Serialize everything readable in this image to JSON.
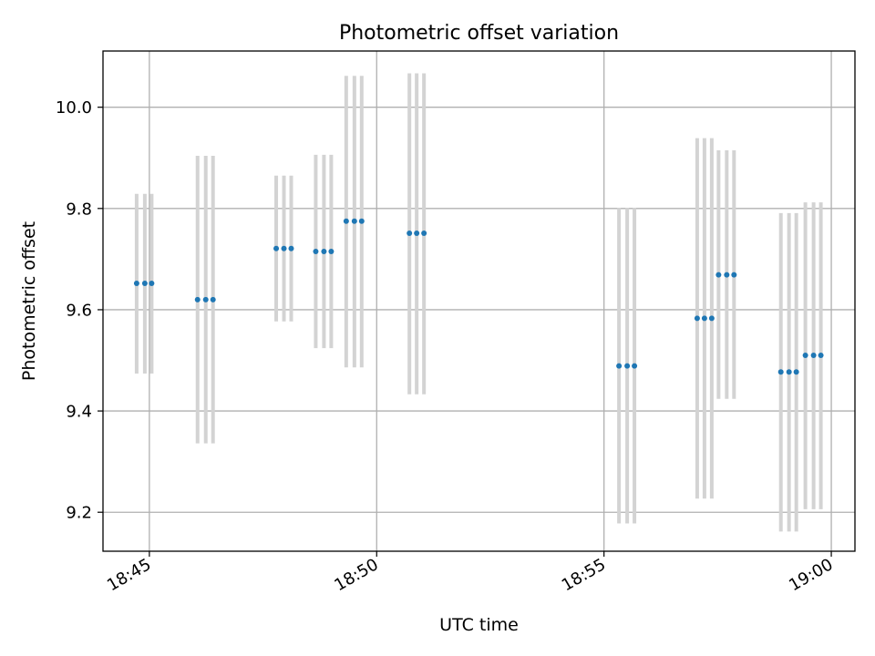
{
  "chart_data": {
    "type": "scatter",
    "title": "Photometric offset variation",
    "xlabel": "UTC time",
    "ylabel": "Photometric offset",
    "x_unit": "minutes after 18:00 UTC",
    "xlim": [
      43.98,
      60.52
    ],
    "ylim": [
      9.123,
      10.111
    ],
    "grid": true,
    "x_ticks": [
      {
        "value": 45,
        "label": "18:45"
      },
      {
        "value": 50,
        "label": "18:50"
      },
      {
        "value": 55,
        "label": "18:55"
      },
      {
        "value": 60,
        "label": "19:00"
      }
    ],
    "y_ticks": [
      {
        "value": 9.2,
        "label": "9.2"
      },
      {
        "value": 9.4,
        "label": "9.4"
      },
      {
        "value": 9.6,
        "label": "9.6"
      },
      {
        "value": 9.8,
        "label": "9.8"
      },
      {
        "value": 10.0,
        "label": "10.0"
      }
    ],
    "marker_color": "#1f77b4",
    "errorbar_color": "#d3d3d3",
    "points": [
      {
        "x": 44.72,
        "y": 9.652,
        "lower": 9.474,
        "upper": 9.829
      },
      {
        "x": 44.9,
        "y": 9.652,
        "lower": 9.474,
        "upper": 9.829
      },
      {
        "x": 45.05,
        "y": 9.652,
        "lower": 9.474,
        "upper": 9.829
      },
      {
        "x": 46.06,
        "y": 9.62,
        "lower": 9.336,
        "upper": 9.904
      },
      {
        "x": 46.24,
        "y": 9.62,
        "lower": 9.336,
        "upper": 9.904
      },
      {
        "x": 46.4,
        "y": 9.62,
        "lower": 9.336,
        "upper": 9.904
      },
      {
        "x": 47.79,
        "y": 9.721,
        "lower": 9.577,
        "upper": 9.865
      },
      {
        "x": 47.96,
        "y": 9.721,
        "lower": 9.577,
        "upper": 9.865
      },
      {
        "x": 48.12,
        "y": 9.721,
        "lower": 9.577,
        "upper": 9.865
      },
      {
        "x": 48.66,
        "y": 9.715,
        "lower": 9.524,
        "upper": 9.906
      },
      {
        "x": 48.84,
        "y": 9.715,
        "lower": 9.524,
        "upper": 9.906
      },
      {
        "x": 49.0,
        "y": 9.715,
        "lower": 9.524,
        "upper": 9.906
      },
      {
        "x": 49.33,
        "y": 9.775,
        "lower": 9.486,
        "upper": 10.062
      },
      {
        "x": 49.51,
        "y": 9.775,
        "lower": 9.486,
        "upper": 10.062
      },
      {
        "x": 49.67,
        "y": 9.775,
        "lower": 9.486,
        "upper": 10.062
      },
      {
        "x": 50.72,
        "y": 9.751,
        "lower": 9.433,
        "upper": 10.067
      },
      {
        "x": 50.88,
        "y": 9.751,
        "lower": 9.433,
        "upper": 10.067
      },
      {
        "x": 51.04,
        "y": 9.751,
        "lower": 9.433,
        "upper": 10.067
      },
      {
        "x": 55.33,
        "y": 9.489,
        "lower": 9.178,
        "upper": 9.801
      },
      {
        "x": 55.51,
        "y": 9.489,
        "lower": 9.178,
        "upper": 9.801
      },
      {
        "x": 55.67,
        "y": 9.489,
        "lower": 9.178,
        "upper": 9.801
      },
      {
        "x": 57.05,
        "y": 9.583,
        "lower": 9.227,
        "upper": 9.939
      },
      {
        "x": 57.21,
        "y": 9.583,
        "lower": 9.227,
        "upper": 9.939
      },
      {
        "x": 57.37,
        "y": 9.583,
        "lower": 9.227,
        "upper": 9.939
      },
      {
        "x": 57.52,
        "y": 9.669,
        "lower": 9.424,
        "upper": 9.915
      },
      {
        "x": 57.7,
        "y": 9.669,
        "lower": 9.424,
        "upper": 9.915
      },
      {
        "x": 57.86,
        "y": 9.669,
        "lower": 9.424,
        "upper": 9.915
      },
      {
        "x": 58.89,
        "y": 9.477,
        "lower": 9.162,
        "upper": 9.791
      },
      {
        "x": 59.07,
        "y": 9.477,
        "lower": 9.162,
        "upper": 9.791
      },
      {
        "x": 59.23,
        "y": 9.477,
        "lower": 9.162,
        "upper": 9.791
      },
      {
        "x": 59.43,
        "y": 9.51,
        "lower": 9.206,
        "upper": 9.812
      },
      {
        "x": 59.61,
        "y": 9.51,
        "lower": 9.206,
        "upper": 9.812
      },
      {
        "x": 59.77,
        "y": 9.51,
        "lower": 9.206,
        "upper": 9.812
      }
    ]
  }
}
